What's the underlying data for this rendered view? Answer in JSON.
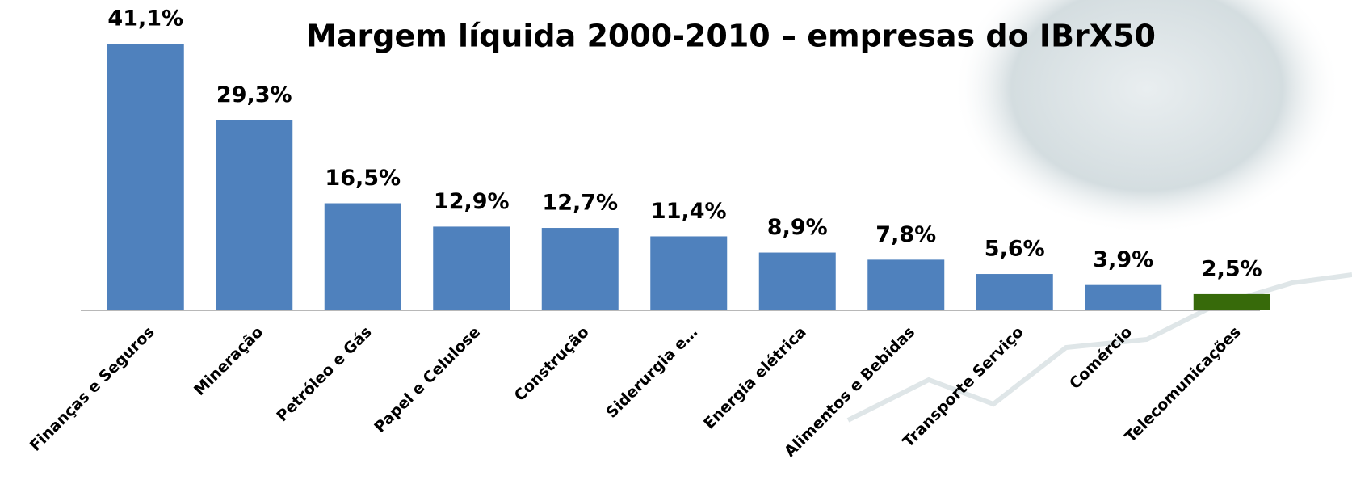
{
  "chart_data": {
    "type": "bar",
    "title": "Margem líquida 2000-2010 – empresas do IBrX50",
    "categories": [
      "Finanças e Seguros",
      "Mineração",
      "Petróleo e Gás",
      "Papel e Celulose",
      "Construção",
      "Siderurgia e…",
      "Energia elétrica",
      "Alimentos e Bebidas",
      "Transporte Serviço",
      "Comércio",
      "Telecomunicações"
    ],
    "values": [
      41.1,
      29.3,
      16.5,
      12.9,
      12.7,
      11.4,
      8.9,
      7.8,
      5.6,
      3.9,
      2.5
    ],
    "value_labels": [
      "41,1%",
      "29,3%",
      "16,5%",
      "12,9%",
      "12,7%",
      "11,4%",
      "8,9%",
      "7,8%",
      "5,6%",
      "3,9%",
      "2,5%"
    ],
    "colors": [
      "#4f81bd",
      "#4f81bd",
      "#4f81bd",
      "#4f81bd",
      "#4f81bd",
      "#4f81bd",
      "#4f81bd",
      "#4f81bd",
      "#4f81bd",
      "#4f81bd",
      "#376a0a"
    ]
  }
}
